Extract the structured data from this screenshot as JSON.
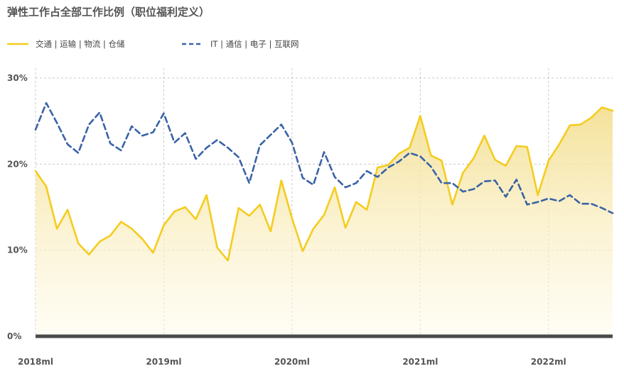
{
  "title": "弹性工作占全部工作比例（职位福利定义）",
  "colors": {
    "transport": "#F5CC1E",
    "it": "#3A63A6",
    "grid": "#C8C8C8",
    "baseline": "#4A4A4A",
    "area_top": "#F3DE8E",
    "area_bottom": "#FFFBEA"
  },
  "chart_data": {
    "type": "line",
    "title": "弹性工作占全部工作比例（职位福利定义）",
    "xlabel": "",
    "ylabel": "",
    "x_tick_labels": [
      "2018ml",
      "2019ml",
      "2020ml",
      "2021ml",
      "2022ml"
    ],
    "y_tick_labels": [
      "0%",
      "10%",
      "20%",
      "30%"
    ],
    "y_ticks": [
      0,
      10,
      20,
      30
    ],
    "ylim": [
      0,
      30
    ],
    "x_index_range": [
      0,
      54
    ],
    "x_tick_index": [
      0,
      12,
      24,
      36,
      48
    ],
    "grid": true,
    "legend_position": "top-left",
    "series": [
      {
        "name": "交通 | 运输 | 物流 | 仓储",
        "style": "solid-area",
        "values": [
          19.2,
          17.4,
          12.5,
          14.7,
          10.8,
          9.5,
          11.0,
          11.7,
          13.3,
          12.5,
          11.3,
          9.7,
          12.9,
          14.5,
          15.0,
          13.6,
          16.4,
          10.3,
          8.8,
          14.9,
          14.0,
          15.3,
          12.2,
          18.1,
          13.7,
          9.9,
          12.5,
          14.1,
          17.3,
          12.6,
          15.6,
          14.7,
          19.6,
          19.9,
          21.2,
          21.9,
          25.6,
          21.0,
          20.4,
          15.3,
          19.0,
          20.7,
          23.3,
          20.5,
          19.8,
          22.1,
          22.0,
          16.4,
          20.4,
          22.3,
          24.5,
          24.6,
          25.4,
          26.6,
          26.2
        ]
      },
      {
        "name": "IT | 通信 | 电子 | 互联网",
        "style": "dashed",
        "values": [
          24.0,
          27.1,
          24.8,
          22.3,
          21.3,
          24.6,
          26.0,
          22.4,
          21.6,
          24.4,
          23.3,
          23.7,
          25.9,
          22.5,
          23.6,
          20.6,
          21.9,
          22.8,
          21.9,
          20.8,
          17.8,
          22.2,
          23.4,
          24.6,
          22.5,
          18.4,
          17.6,
          21.4,
          18.5,
          17.3,
          17.8,
          19.2,
          18.5,
          19.6,
          20.3,
          21.3,
          20.9,
          19.7,
          17.8,
          17.8,
          16.8,
          17.1,
          18.0,
          18.1,
          16.2,
          18.2,
          15.3,
          15.6,
          16.0,
          15.7,
          16.4,
          15.4,
          15.4,
          14.9,
          14.3
        ]
      }
    ]
  }
}
